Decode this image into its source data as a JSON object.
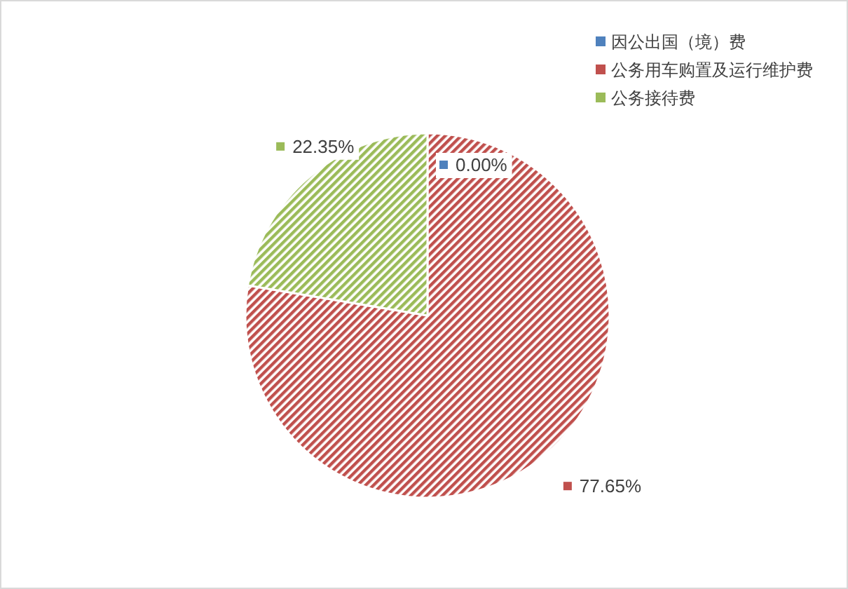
{
  "chart_data": {
    "type": "pie",
    "categories": [
      "因公出国（境）费",
      "公务用车购置及运行维护费",
      "公务接待费"
    ],
    "values": [
      0.0,
      77.65,
      22.35
    ],
    "value_labels": [
      "0.00%",
      "77.65%",
      "22.35%"
    ],
    "colors": [
      "#4f81bd",
      "#c0504d",
      "#9bbb59"
    ],
    "legend": "top right"
  }
}
